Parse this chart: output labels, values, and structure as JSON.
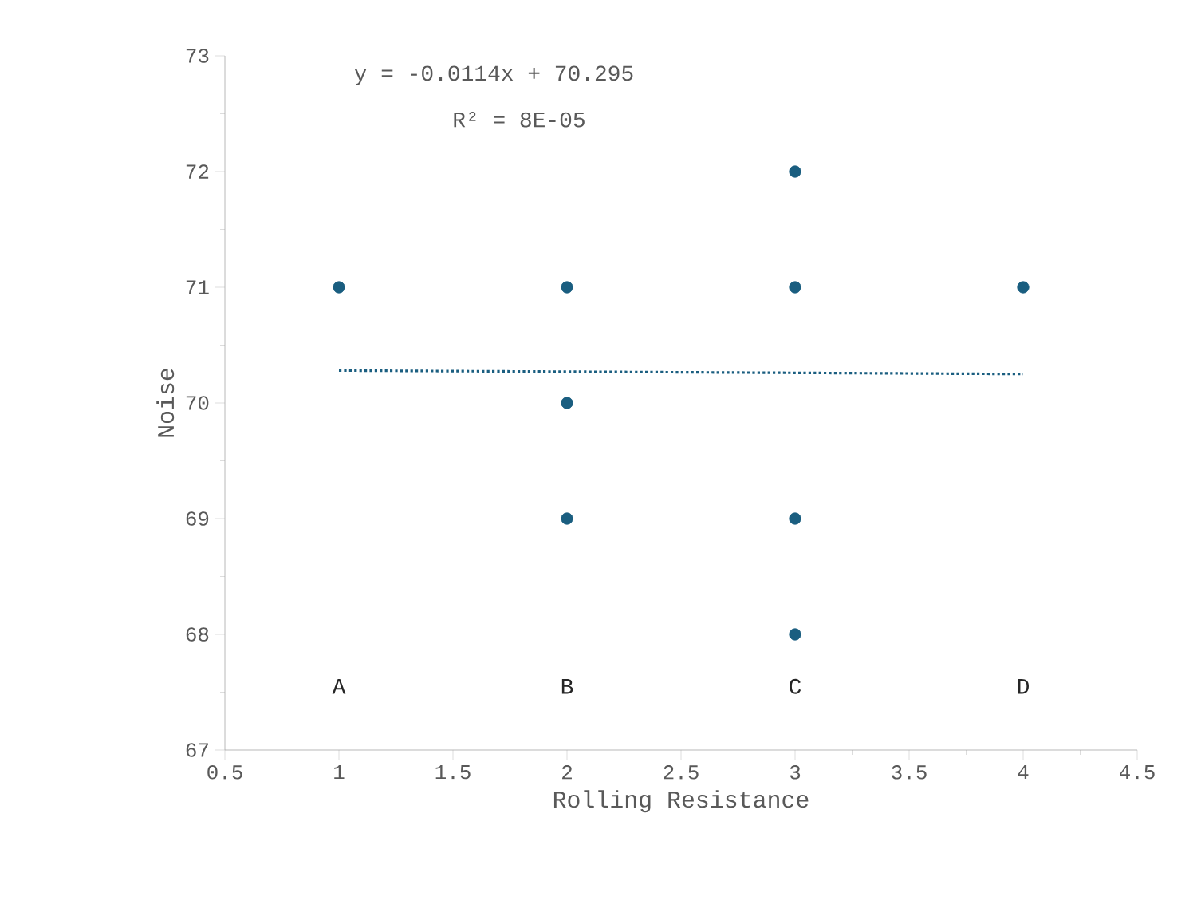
{
  "chart_data": {
    "type": "scatter",
    "xlabel": "Rolling Resistance",
    "ylabel": "Noise",
    "xlim": [
      0.5,
      4.5
    ],
    "xticks": [
      0.5,
      1,
      1.5,
      2,
      2.5,
      3,
      3.5,
      4,
      4.5
    ],
    "ylim": [
      67,
      73
    ],
    "yticks": [
      67,
      68,
      69,
      70,
      71,
      72,
      73
    ],
    "series": [
      {
        "color": "#1a5e80",
        "marker": "circle",
        "x": [
          1,
          2,
          2,
          2,
          3,
          3,
          3,
          3,
          4
        ],
        "values": [
          71,
          71,
          70,
          69,
          72,
          71,
          69,
          68,
          71
        ]
      },
      {
        "type": "line",
        "color": "#1a5e80",
        "marker": "none",
        "line_style": "dotted",
        "x": [
          1,
          4
        ],
        "values": [
          70.28,
          70.25
        ]
      }
    ],
    "annotations": [
      "y = -0.0114x + 70.295",
      "R² = 8E-05",
      "A",
      "B",
      "C",
      "D"
    ]
  }
}
